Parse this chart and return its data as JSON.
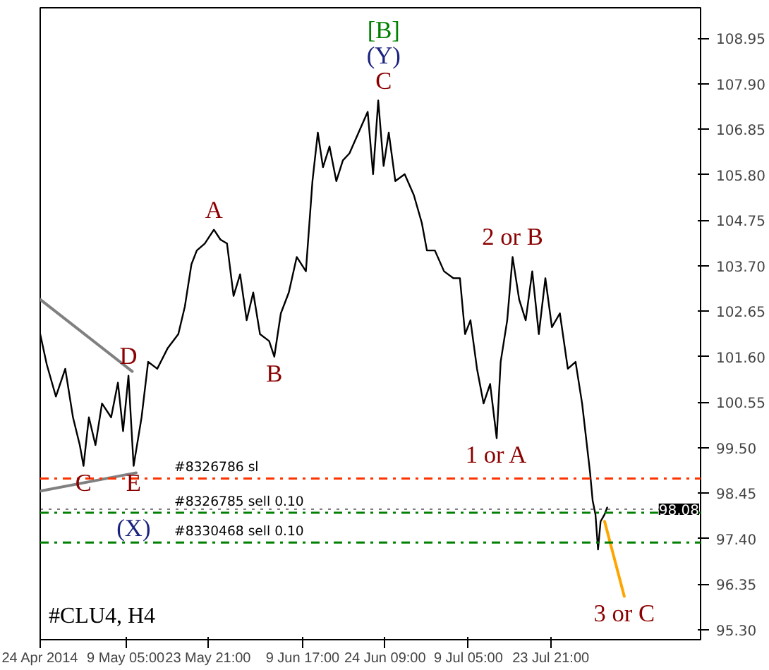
{
  "chart_data": {
    "type": "line",
    "title": "#CLU4, H4",
    "xlim": [
      "2014-04-24T00:00",
      "2014-08-19T13:00"
    ],
    "xticks": [
      {
        "value": "2014-04-24T00:00",
        "label": "24 Apr 2014"
      },
      {
        "value": "2014-05-09T05:00",
        "label": "9 May 05:00"
      },
      {
        "value": "2014-05-23T21:00",
        "label": "23 May 21:00"
      },
      {
        "value": "2014-06-09T17:00",
        "label": "9 Jun 17:00"
      },
      {
        "value": "2014-06-24T09:00",
        "label": "24 Jun 09:00"
      },
      {
        "value": "2014-07-09T05:00",
        "label": "9 Jul 05:00"
      },
      {
        "value": "2014-07-23T21:00",
        "label": "23 Jul 21:00"
      }
    ],
    "ylim": [
      95.07,
      109.65
    ],
    "yticks": [
      {
        "value": 95.3,
        "label": "95.30"
      },
      {
        "value": 96.35,
        "label": "96.35"
      },
      {
        "value": 97.4,
        "label": "97.40"
      },
      {
        "value": 98.45,
        "label": "98.45"
      },
      {
        "value": 99.5,
        "label": "99.50"
      },
      {
        "value": 100.55,
        "label": "100.55"
      },
      {
        "value": 101.6,
        "label": "101.60"
      },
      {
        "value": 102.65,
        "label": "102.65"
      },
      {
        "value": 103.7,
        "label": "103.70"
      },
      {
        "value": 104.75,
        "label": "104.75"
      },
      {
        "value": 105.8,
        "label": "105.80"
      },
      {
        "value": 106.85,
        "label": "106.85"
      },
      {
        "value": 107.9,
        "label": "107.90"
      },
      {
        "value": 108.95,
        "label": "108.95"
      }
    ],
    "line_style": "solid",
    "series": [
      {
        "color": "#000000",
        "x": [
          "2014-04-24T00:00",
          "2014-04-25T04:00",
          "2014-04-26T19:00",
          "2014-04-28T11:00",
          "2014-04-29T20:00",
          "2014-05-01T01:00",
          "2014-05-01T17:00",
          "2014-05-02T16:00",
          "2014-05-03T20:00",
          "2014-05-05T00:00",
          "2014-05-06T15:00",
          "2014-05-07T20:00",
          "2014-05-08T18:00",
          "2014-05-09T17:00",
          "2014-05-10T15:00",
          "2014-05-12T01:00",
          "2014-05-13T05:00",
          "2014-05-14T20:00",
          "2014-05-16T17:00",
          "2014-05-18T14:00",
          "2014-05-19T18:00",
          "2014-05-20T22:00",
          "2014-05-21T21:00",
          "2014-05-23T07:00",
          "2014-05-24T22:00",
          "2014-05-26T02:00",
          "2014-05-27T06:00",
          "2014-05-28T10:00",
          "2014-05-29T14:00",
          "2014-05-30T18:00",
          "2014-05-31T22:00",
          "2014-06-02T03:00",
          "2014-06-03T18:00",
          "2014-06-04T16:00",
          "2014-06-05T20:00",
          "2014-06-07T06:00",
          "2014-06-08T16:00",
          "2014-06-10T07:00",
          "2014-06-11T11:00",
          "2014-06-12T10:00",
          "2014-06-13T08:00",
          "2014-06-14T12:00",
          "2014-06-15T17:00",
          "2014-06-16T21:00",
          "2014-06-18T01:00",
          "2014-06-19T16:00",
          "2014-06-21T07:00",
          "2014-06-22T06:00",
          "2014-06-23T04:00",
          "2014-06-24T03:00",
          "2014-06-25T01:00",
          "2014-06-26T05:00",
          "2014-06-27T21:00",
          "2014-06-29T12:00",
          "2014-06-30T22:00",
          "2014-07-01T20:00",
          "2014-07-03T06:00",
          "2014-07-04T21:00",
          "2014-07-06T13:00",
          "2014-07-07T17:00",
          "2014-07-08T15:00",
          "2014-07-09T14:00",
          "2014-07-10T18:00",
          "2014-07-11T22:00",
          "2014-07-13T02:00",
          "2014-07-14T06:00",
          "2014-07-14T23:00",
          "2014-07-16T03:00",
          "2014-07-17T02:00",
          "2014-07-18T06:00",
          "2014-07-19T10:00",
          "2014-07-20T14:00",
          "2014-07-21T18:00",
          "2014-07-22T22:00",
          "2014-07-24T02:00",
          "2014-07-25T12:00",
          "2014-07-26T22:00",
          "2014-07-28T07:00",
          "2014-07-29T11:00",
          "2014-07-30T04:00",
          "2014-07-30T21:00",
          "2014-07-31T08:00",
          "2014-07-31T20:00",
          "2014-08-01T07:00",
          "2014-08-01T18:00",
          "2014-08-02T11:00",
          "2014-08-02T22:00"
        ],
        "values": [
          102.12,
          101.42,
          100.68,
          101.32,
          100.2,
          99.56,
          99.08,
          100.2,
          99.56,
          100.52,
          100.2,
          101.0,
          99.88,
          101.16,
          99.08,
          100.2,
          101.48,
          101.32,
          101.8,
          102.12,
          102.76,
          103.73,
          104.05,
          104.21,
          104.53,
          104.3,
          104.21,
          103.0,
          103.5,
          102.44,
          103.08,
          102.12,
          101.96,
          101.6,
          102.6,
          103.08,
          103.9,
          103.57,
          105.65,
          106.77,
          105.97,
          106.45,
          105.65,
          106.13,
          106.29,
          106.77,
          107.25,
          105.81,
          107.51,
          106.0,
          106.77,
          105.65,
          105.81,
          105.33,
          104.69,
          104.05,
          104.05,
          103.57,
          103.41,
          103.41,
          102.12,
          102.44,
          101.32,
          100.52,
          100.97,
          99.72,
          101.48,
          102.44,
          103.9,
          102.92,
          102.44,
          103.57,
          102.12,
          103.41,
          102.28,
          102.6,
          101.32,
          101.48,
          100.52,
          99.72,
          98.92,
          98.28,
          97.96,
          97.15,
          97.8,
          97.96,
          98.12
        ]
      },
      {
        "color": "#808080",
        "x": [
          "2014-04-24T00:00",
          "2014-05-10T09:00"
        ],
        "values": [
          102.92,
          101.26
        ]
      },
      {
        "color": "#808080",
        "x": [
          "2014-04-24T00:00",
          "2014-05-11T02:00"
        ],
        "values": [
          98.5,
          98.92
        ]
      },
      {
        "color": "#ffa500",
        "x": [
          "2014-08-02T11:00",
          "2014-08-05T23:00"
        ],
        "values": [
          97.8,
          96.07
        ]
      }
    ],
    "ref_lines": [
      {
        "axis": "y",
        "value": 98.79,
        "label": "#8326786 sl",
        "color": "#ff3300",
        "line_style": "dashdot"
      },
      {
        "axis": "y",
        "value": 98.0,
        "label": "#8326785 sell 0.10",
        "color": "#008000",
        "line_style": "dashdot"
      },
      {
        "axis": "y",
        "value": 97.31,
        "label": "#8330468 sell 0.10",
        "color": "#008000",
        "line_style": "dashdot"
      },
      {
        "axis": "y",
        "value": 98.08,
        "label": "98.08",
        "color": "#000000",
        "line_style": "dotted"
      }
    ],
    "annotations": [
      {
        "text": "C",
        "x": "2014-06-24T03:00",
        "y": 107.51
      },
      {
        "text": "(Y)",
        "x": "2014-06-24T03:00",
        "y": 107.51
      },
      {
        "text": "[B]",
        "x": "2014-06-24T03:00",
        "y": 107.51
      },
      {
        "text": "A",
        "x": "2014-05-24T22:00",
        "y": 104.53
      },
      {
        "text": "B",
        "x": "2014-06-04T16:00",
        "y": 101.6
      },
      {
        "text": "2 or B",
        "x": "2014-07-17T02:00",
        "y": 103.9
      },
      {
        "text": "1 or A",
        "x": "2014-07-14T06:00",
        "y": 99.72
      },
      {
        "text": "3 or C",
        "x": "2014-08-05T23:00",
        "y": 96.07
      },
      {
        "text": "D",
        "x": "2014-05-09T17:00",
        "y": 101.16
      },
      {
        "text": "E",
        "x": "2014-05-10T15:00",
        "y": 99.08
      },
      {
        "text": "(X)",
        "x": "2014-05-10T15:00",
        "y": 99.08
      },
      {
        "text": "C",
        "x": "2014-05-01T17:00",
        "y": 99.08
      }
    ]
  }
}
